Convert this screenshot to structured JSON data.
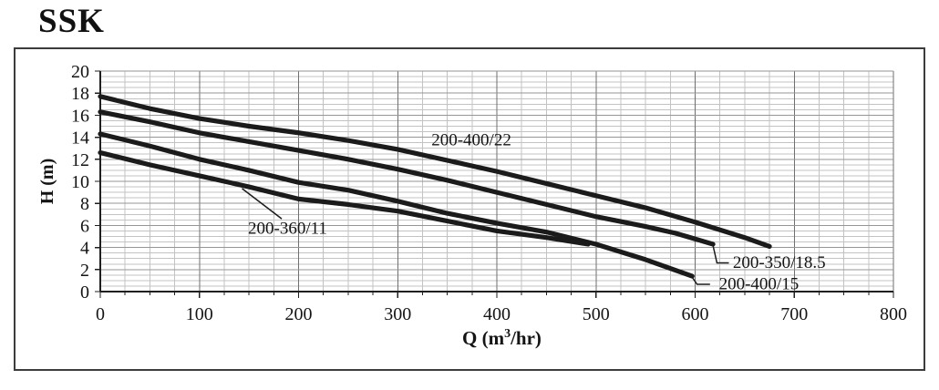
{
  "title": "SSK",
  "colors": {
    "curve": "#1b1b1b",
    "grid_minor": "#c3c3c3",
    "grid_major_x": "#6f6f6f",
    "grid_major_y": "#969696",
    "axis": "#1f1f1f",
    "text": "#141414",
    "border": "#3c3c3c",
    "background": "#ffffff"
  },
  "chart_data": {
    "type": "line",
    "title": "SSK",
    "xlabel_parts": [
      "Q (m",
      "3",
      "/hr)"
    ],
    "ylabel": "H (m)",
    "xlim": [
      0,
      800
    ],
    "ylim": [
      0,
      20
    ],
    "x_major_ticks": [
      0,
      100,
      200,
      300,
      400,
      500,
      600,
      700,
      800
    ],
    "x_minor_step": 25,
    "y_major_ticks": [
      0,
      2,
      4,
      6,
      8,
      10,
      12,
      14,
      16,
      18,
      20
    ],
    "y_minor_step": 0.5,
    "grid": "both",
    "legend_position": "none",
    "series": [
      {
        "name": "200-400/22",
        "points": [
          [
            0,
            17.7
          ],
          [
            50,
            16.6
          ],
          [
            100,
            15.7
          ],
          [
            150,
            15.0
          ],
          [
            200,
            14.4
          ],
          [
            250,
            13.7
          ],
          [
            300,
            12.9
          ],
          [
            350,
            11.9
          ],
          [
            400,
            10.9
          ],
          [
            450,
            9.8
          ],
          [
            500,
            8.7
          ],
          [
            550,
            7.6
          ],
          [
            600,
            6.3
          ],
          [
            650,
            4.9
          ],
          [
            675,
            4.1
          ]
        ]
      },
      {
        "name": "200-350/18.5",
        "points": [
          [
            0,
            16.3
          ],
          [
            50,
            15.4
          ],
          [
            100,
            14.4
          ],
          [
            150,
            13.6
          ],
          [
            200,
            12.8
          ],
          [
            250,
            12.0
          ],
          [
            300,
            11.1
          ],
          [
            350,
            10.1
          ],
          [
            400,
            9.0
          ],
          [
            450,
            7.9
          ],
          [
            500,
            6.8
          ],
          [
            550,
            5.9
          ],
          [
            580,
            5.3
          ],
          [
            618,
            4.3
          ]
        ]
      },
      {
        "name": "200-400/15",
        "points": [
          [
            0,
            14.3
          ],
          [
            50,
            13.2
          ],
          [
            100,
            12.0
          ],
          [
            150,
            11.0
          ],
          [
            200,
            9.9
          ],
          [
            250,
            9.2
          ],
          [
            300,
            8.2
          ],
          [
            350,
            7.1
          ],
          [
            400,
            6.2
          ],
          [
            450,
            5.4
          ],
          [
            500,
            4.3
          ],
          [
            550,
            2.9
          ],
          [
            597,
            1.4
          ]
        ]
      },
      {
        "name": "200-360/11",
        "points": [
          [
            0,
            12.6
          ],
          [
            50,
            11.5
          ],
          [
            100,
            10.5
          ],
          [
            150,
            9.5
          ],
          [
            200,
            8.4
          ],
          [
            250,
            7.9
          ],
          [
            300,
            7.3
          ],
          [
            350,
            6.4
          ],
          [
            400,
            5.5
          ],
          [
            450,
            4.9
          ],
          [
            492,
            4.3
          ]
        ]
      }
    ],
    "annotations": [
      {
        "text": "200-400/22",
        "q": 334,
        "h": 13.7,
        "anchor": "start",
        "leader": []
      },
      {
        "text": "200-360/11",
        "q": 149,
        "h": 5.7,
        "anchor": "start",
        "leader": [
          [
            143,
            9.35
          ],
          [
            183,
            6.6
          ]
        ]
      },
      {
        "text": "200-350/18.5",
        "q": 638,
        "h": 2.6,
        "anchor": "start",
        "leader": [
          [
            618,
            4.2
          ],
          [
            622,
            2.6
          ],
          [
            634,
            2.6
          ]
        ]
      },
      {
        "text": "200-400/15",
        "q": 624,
        "h": 0.66,
        "anchor": "start",
        "leader": [
          [
            597,
            1.3
          ],
          [
            602,
            0.66
          ],
          [
            615,
            0.66
          ]
        ]
      }
    ]
  }
}
